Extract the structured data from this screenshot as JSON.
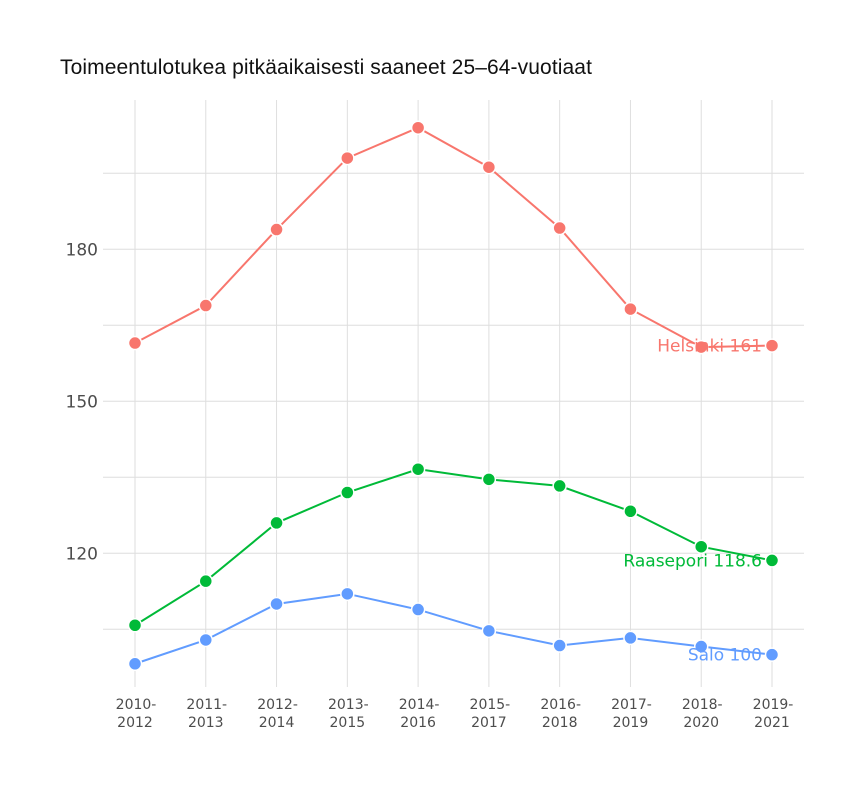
{
  "chart_data": {
    "type": "line",
    "title": "Toimeentulotukea pitkäaikaisesti saaneet 25–64-vuotiaat",
    "xlabel": "",
    "ylabel": "",
    "categories": [
      "2010-2012",
      "2011-2013",
      "2012-2014",
      "2013-2015",
      "2014-2016",
      "2015-2017",
      "2016-2018",
      "2017-2019",
      "2018-2020",
      "2019-2021"
    ],
    "x_tick_labels": [
      [
        "2010-",
        "2012"
      ],
      [
        "2011-",
        "2013"
      ],
      [
        "2012-",
        "2014"
      ],
      [
        "2013-",
        "2015"
      ],
      [
        "2014-",
        "2016"
      ],
      [
        "2015-",
        "2017"
      ],
      [
        "2016-",
        "2018"
      ],
      [
        "2017-",
        "2019"
      ],
      [
        "2018-",
        "2020"
      ],
      [
        "2019-",
        "2021"
      ]
    ],
    "y_ticks": [
      120,
      150,
      180
    ],
    "y_minor_gridlines": [
      105,
      135,
      165,
      195
    ],
    "ylim": [
      92,
      210
    ],
    "grid": true,
    "legend": "direct labels at line ends",
    "series": [
      {
        "name": "Helsinki",
        "color": "#F8766D",
        "end_label": "Helsinki 161",
        "values": [
          161.5,
          168.9,
          183.9,
          198.0,
          204.0,
          196.2,
          184.2,
          168.2,
          160.7,
          161.0
        ]
      },
      {
        "name": "Raasepori",
        "color": "#00BA38",
        "end_label": "Raasepori 118.6",
        "values": [
          105.8,
          114.5,
          126.0,
          132.0,
          136.6,
          134.6,
          133.3,
          128.3,
          121.3,
          118.6
        ]
      },
      {
        "name": "Salo",
        "color": "#619CFF",
        "end_label": "Salo 100",
        "values": [
          98.2,
          102.9,
          110.0,
          112.0,
          108.9,
          104.7,
          101.8,
          103.3,
          101.6,
          100.0
        ]
      }
    ]
  }
}
